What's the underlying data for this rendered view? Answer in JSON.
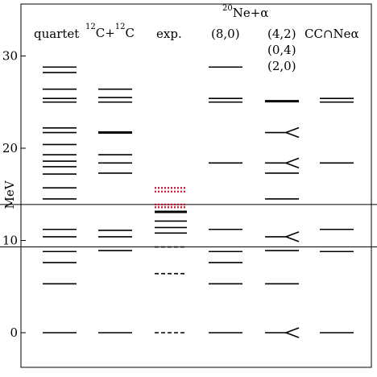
{
  "chart_data": {
    "type": "level-scheme",
    "ylabel": "MeV",
    "ylim": [
      -5,
      35
    ],
    "y_ticks": [
      0,
      10,
      20,
      30
    ],
    "y_tick_labels": [
      "0",
      "10",
      "20",
      "30"
    ],
    "threshold_lines": [
      9.3,
      13.9
    ],
    "columns": [
      {
        "key": "quartet",
        "header_lines": [
          "quartet"
        ],
        "header_sup": "",
        "levels": [
          {
            "e": 0
          },
          {
            "e": 5.3
          },
          {
            "e": 7.6
          },
          {
            "e": 8.8
          },
          {
            "e": 10.4
          },
          {
            "e": 11.2
          },
          {
            "e": 14.5
          },
          {
            "e": 15.7
          },
          {
            "e": 17.2
          },
          {
            "e": 18.0
          },
          {
            "e": 18.6
          },
          {
            "e": 19.3
          },
          {
            "e": 20.4
          },
          {
            "e": 21.7
          },
          {
            "e": 22.2
          },
          {
            "e": 25.0
          },
          {
            "e": 25.4
          },
          {
            "e": 26.4
          },
          {
            "e": 28.2
          },
          {
            "e": 28.8
          }
        ]
      },
      {
        "key": "cc",
        "header_lines": [
          "C+",
          "C"
        ],
        "header_sup": "12",
        "levels": [
          {
            "e": 0
          },
          {
            "e": 8.9
          },
          {
            "e": 10.4
          },
          {
            "e": 11.1
          },
          {
            "e": 17.3
          },
          {
            "e": 18.4
          },
          {
            "e": 19.3
          },
          {
            "e": 21.7,
            "weight": "bold"
          },
          {
            "e": 25.0
          },
          {
            "e": 25.5
          },
          {
            "e": 26.4
          }
        ]
      },
      {
        "key": "exp",
        "header_lines": [
          "exp."
        ],
        "header_sup": "",
        "levels": [
          {
            "e": 0,
            "style": "dashed"
          },
          {
            "e": 6.4,
            "style": "dashed"
          },
          {
            "e": 9.3,
            "style": "dashed"
          },
          {
            "e": 10.8
          },
          {
            "e": 11.4
          },
          {
            "e": 12.1
          },
          {
            "e": 13.1,
            "weight": "bold"
          },
          {
            "e": 13.6,
            "style": "dotted-red"
          },
          {
            "e": 13.9,
            "style": "dotted-red"
          },
          {
            "e": 15.3,
            "style": "dotted-red"
          },
          {
            "e": 15.7,
            "style": "dotted-red"
          }
        ]
      },
      {
        "key": "ne8",
        "header_lines": [
          "(8,0)"
        ],
        "header_sup": "",
        "levels": [
          {
            "e": 0
          },
          {
            "e": 5.3
          },
          {
            "e": 7.6
          },
          {
            "e": 8.8
          },
          {
            "e": 11.2
          },
          {
            "e": 18.4
          },
          {
            "e": 25.0
          },
          {
            "e": 25.4
          },
          {
            "e": 28.8
          }
        ]
      },
      {
        "key": "ne42",
        "header_lines": [
          "(4,2)",
          "(0,4)",
          "(2,0)"
        ],
        "header_sup": "",
        "levels": [
          {
            "e": 0,
            "fork": true
          },
          {
            "e": 5.3
          },
          {
            "e": 8.9
          },
          {
            "e": 10.4,
            "fork": true
          },
          {
            "e": 14.5
          },
          {
            "e": 17.3
          },
          {
            "e": 18.4,
            "fork": true
          },
          {
            "e": 21.7,
            "fork": true
          },
          {
            "e": 25.1,
            "weight": "bold"
          }
        ]
      },
      {
        "key": "ccne",
        "header_lines": [
          "CC∩Neα"
        ],
        "header_sup": "",
        "levels": [
          {
            "e": 0
          },
          {
            "e": 8.8
          },
          {
            "e": 11.2
          },
          {
            "e": 18.4
          },
          {
            "e": 25.0
          },
          {
            "e": 25.4
          }
        ]
      }
    ],
    "group_header": {
      "sup": "20",
      "text": "Ne+α"
    }
  }
}
